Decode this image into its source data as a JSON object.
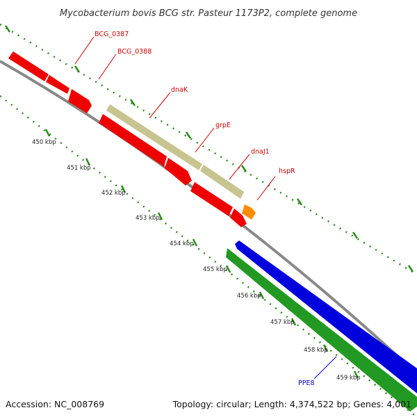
{
  "title": "Mycobacterium bovis BCG str. Pasteur 1173P2, complete genome",
  "footer": {
    "accession": "Accession: NC_008769",
    "summary": "Topology: circular; Length: 4,374,522 bp; Genes: 4,001"
  },
  "colors": {
    "backbone": "#888888",
    "ruler": "#2a8a1a",
    "forward_red": "#ee0000",
    "dnaK_khaki": "#c8c490",
    "hspR_orange": "#ff8c00",
    "blue": "#0000dd",
    "green": "#229922",
    "label_red": "#cc0000",
    "label_blue": "#0000cc"
  },
  "kbp_labels": [
    "450 kbp",
    "451 kbp",
    "452 kbp",
    "453 kbp",
    "454 kbp",
    "455 kbp",
    "456 kbp",
    "457 kbp",
    "458 kbp",
    "459 kbp"
  ],
  "genes": [
    {
      "name": "BCG_0387",
      "color_key": "forward_red",
      "labeled": true
    },
    {
      "name": "BCG_0388",
      "color_key": "forward_red",
      "labeled": true
    },
    {
      "name": "",
      "color_key": "forward_red",
      "labeled": false
    },
    {
      "name": "dnaK",
      "color_key": "dnaK_khaki",
      "labeled": true
    },
    {
      "name": "grpE",
      "color_key": "dnaK_khaki",
      "labeled": true
    },
    {
      "name": "dnaJ1",
      "color_key": "forward_red",
      "labeled": true
    },
    {
      "name": "hspR",
      "color_key": "hspR_orange",
      "labeled": true
    },
    {
      "name": "",
      "color_key": "forward_red",
      "labeled": false
    },
    {
      "name": "",
      "color_key": "forward_red",
      "labeled": false
    },
    {
      "name": "",
      "color_key": "blue",
      "labeled": false
    },
    {
      "name": "PPE8",
      "color_key": "green",
      "labeled": true
    }
  ]
}
